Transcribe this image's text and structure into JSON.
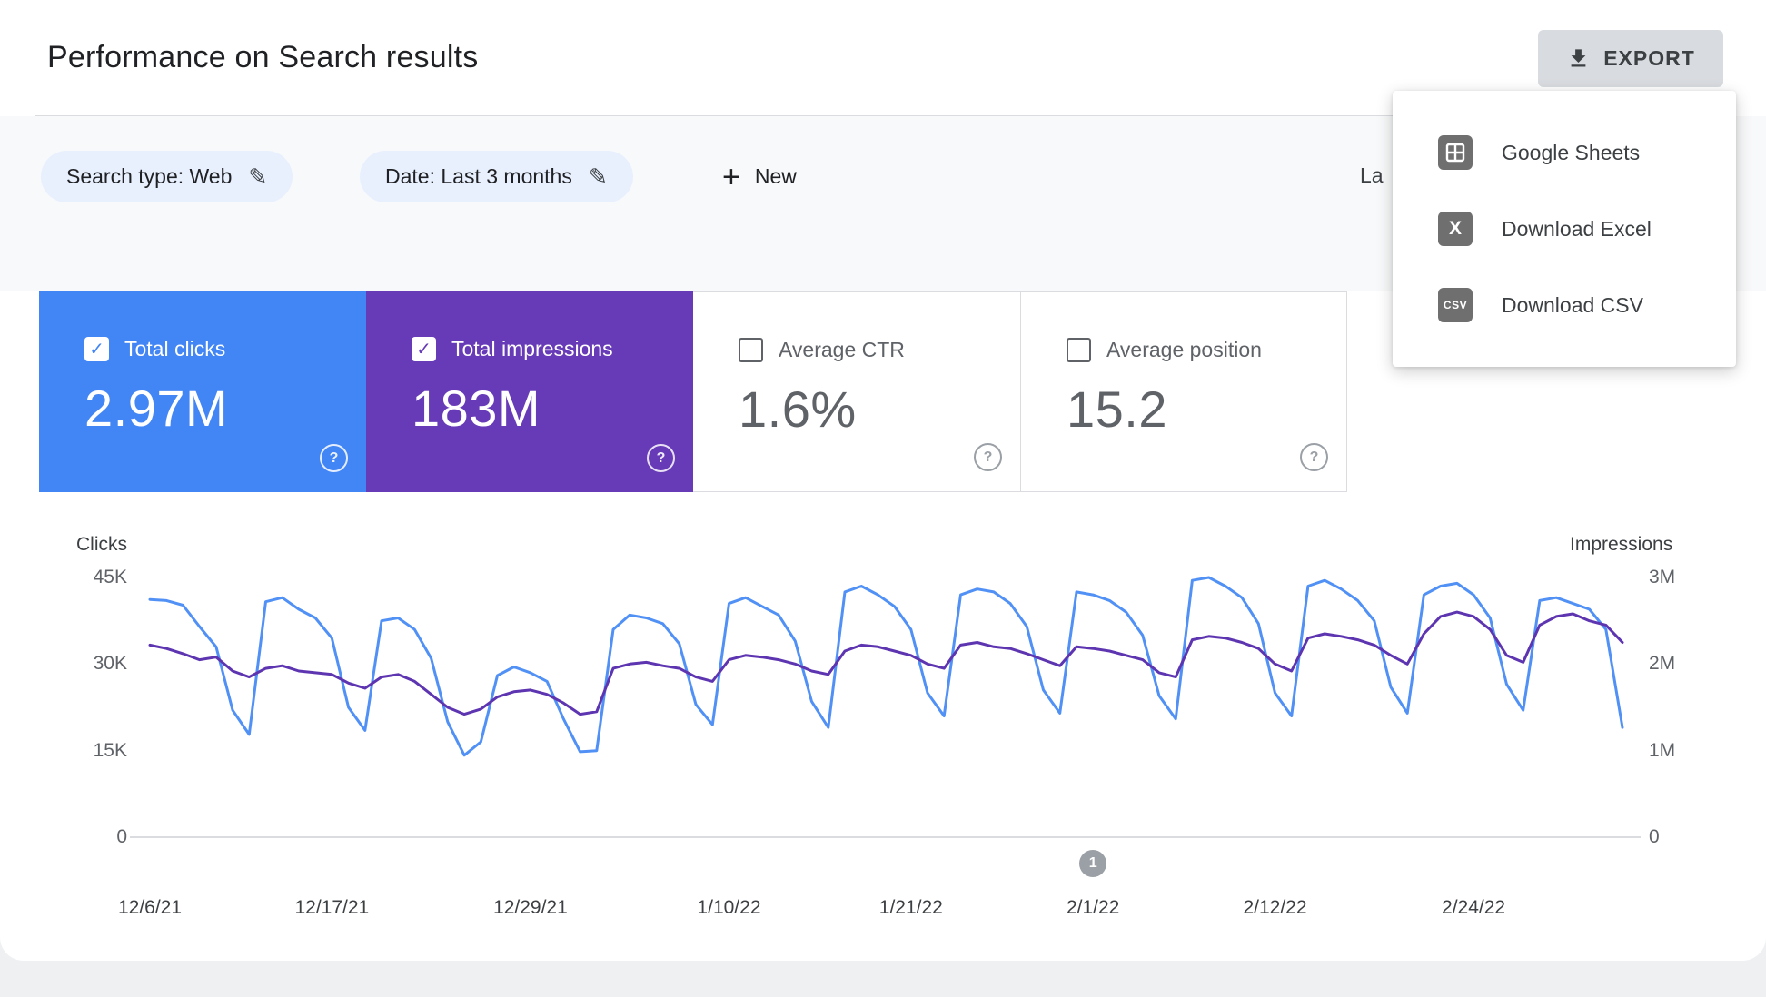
{
  "header": {
    "title": "Performance on Search results",
    "export_label": "EXPORT"
  },
  "export_menu": {
    "items": [
      {
        "label": "Google Sheets"
      },
      {
        "label": "Download Excel",
        "icon_text": "X"
      },
      {
        "label": "Download CSV",
        "icon_text": "CSV"
      }
    ]
  },
  "filters": {
    "search_type_chip": "Search type: Web",
    "date_chip": "Date: Last 3 months",
    "new_button": "New",
    "clipped_right_text": "La"
  },
  "metrics": [
    {
      "label": "Total clicks",
      "value": "2.97M",
      "checked": true,
      "color": "#4285f4"
    },
    {
      "label": "Total impressions",
      "value": "183M",
      "checked": true,
      "color": "#673ab7"
    },
    {
      "label": "Average CTR",
      "value": "1.6%",
      "checked": false
    },
    {
      "label": "Average position",
      "value": "15.2",
      "checked": false
    }
  ],
  "chart_data": {
    "type": "line",
    "grid": "baseline-only",
    "left_axis": {
      "title": "Clicks",
      "unit": "K",
      "max": 45,
      "ticks": [
        {
          "label": "45K",
          "value": 45
        },
        {
          "label": "30K",
          "value": 30
        },
        {
          "label": "15K",
          "value": 15
        },
        {
          "label": "0",
          "value": 0
        }
      ]
    },
    "right_axis": {
      "title": "Impressions",
      "unit": "M",
      "max": 3,
      "ticks": [
        {
          "label": "3M",
          "value": 3
        },
        {
          "label": "2M",
          "value": 2
        },
        {
          "label": "1M",
          "value": 1
        },
        {
          "label": "0",
          "value": 0
        }
      ]
    },
    "x_ticks": [
      {
        "label": "12/6/21",
        "index": 0
      },
      {
        "label": "12/17/21",
        "index": 11
      },
      {
        "label": "12/29/21",
        "index": 23
      },
      {
        "label": "1/10/22",
        "index": 35
      },
      {
        "label": "1/21/22",
        "index": 46
      },
      {
        "label": "2/1/22",
        "index": 57
      },
      {
        "label": "2/12/22",
        "index": 68
      },
      {
        "label": "2/24/22",
        "index": 80
      }
    ],
    "annotation": {
      "label": "1",
      "index": 57
    },
    "series": [
      {
        "name": "Clicks",
        "axis": "left",
        "color": "#5191f5",
        "values": [
          41.2,
          41.0,
          40.2,
          36.5,
          33.0,
          22.0,
          17.8,
          40.8,
          41.5,
          39.5,
          38.0,
          34.5,
          22.5,
          18.5,
          37.5,
          38.0,
          36.0,
          31.0,
          20.0,
          14.2,
          16.5,
          28.0,
          29.5,
          28.5,
          27.0,
          20.5,
          14.8,
          15.0,
          36.0,
          38.5,
          38.0,
          37.0,
          33.5,
          23.0,
          19.5,
          40.5,
          41.5,
          40.0,
          38.5,
          34.0,
          23.5,
          19.0,
          42.5,
          43.5,
          42.0,
          40.0,
          36.0,
          25.0,
          21.0,
          42.0,
          43.0,
          42.5,
          40.5,
          36.5,
          25.5,
          21.5,
          42.5,
          42.0,
          41.0,
          39.0,
          35.0,
          24.5,
          20.5,
          44.5,
          45.0,
          43.5,
          41.5,
          37.0,
          25.0,
          21.0,
          43.5,
          44.5,
          43.0,
          41.0,
          37.5,
          26.0,
          21.5,
          42.0,
          43.5,
          44.0,
          42.0,
          38.0,
          26.5,
          22.0,
          41.0,
          41.5,
          40.5,
          39.5,
          36.0,
          19.0
        ]
      },
      {
        "name": "Impressions",
        "axis": "right",
        "color": "#5e35b1",
        "values": [
          2.22,
          2.18,
          2.12,
          2.05,
          2.08,
          1.92,
          1.85,
          1.95,
          1.98,
          1.92,
          1.9,
          1.88,
          1.78,
          1.72,
          1.85,
          1.88,
          1.8,
          1.65,
          1.5,
          1.42,
          1.48,
          1.62,
          1.68,
          1.7,
          1.65,
          1.55,
          1.42,
          1.45,
          1.95,
          2.0,
          2.02,
          1.98,
          1.95,
          1.85,
          1.8,
          2.05,
          2.1,
          2.08,
          2.05,
          2.0,
          1.92,
          1.88,
          2.15,
          2.22,
          2.2,
          2.15,
          2.1,
          2.0,
          1.95,
          2.22,
          2.25,
          2.2,
          2.18,
          2.12,
          2.05,
          1.98,
          2.2,
          2.18,
          2.15,
          2.1,
          2.05,
          1.9,
          1.85,
          2.28,
          2.32,
          2.3,
          2.25,
          2.18,
          2.0,
          1.92,
          2.3,
          2.35,
          2.32,
          2.28,
          2.22,
          2.1,
          2.0,
          2.35,
          2.55,
          2.6,
          2.55,
          2.4,
          2.1,
          2.02,
          2.45,
          2.55,
          2.58,
          2.5,
          2.45,
          2.25
        ]
      }
    ]
  }
}
